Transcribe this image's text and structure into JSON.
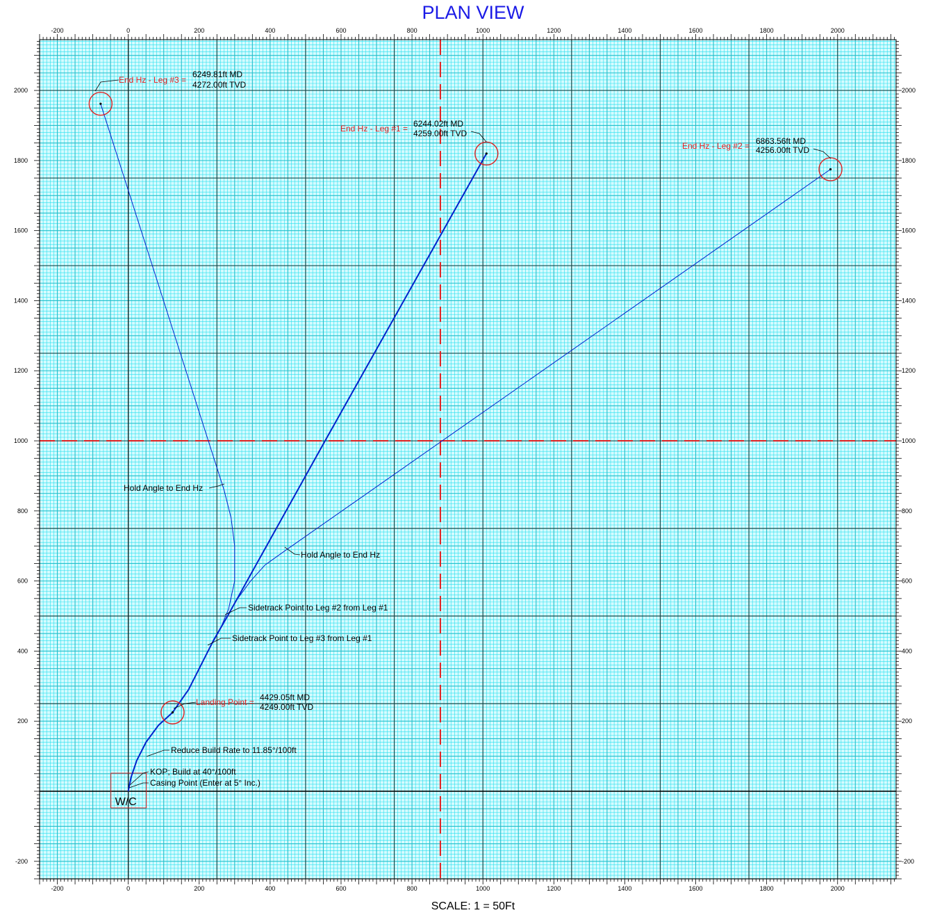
{
  "chart_data": {
    "type": "line",
    "title": "PLAN VIEW",
    "subtitle": "",
    "footer": "SCALE: 1 = 50Ft",
    "xlabel": "",
    "ylabel": "",
    "xlim": [
      -250,
      2165
    ],
    "ylim": [
      -250,
      2145
    ],
    "x_ticks": [
      -200,
      0,
      200,
      400,
      600,
      800,
      1000,
      1200,
      1400,
      1600,
      1800,
      2000
    ],
    "y_ticks": [
      -200,
      200,
      400,
      600,
      800,
      1000,
      1200,
      1400,
      1600,
      1800,
      2000
    ],
    "grid": true,
    "colors": {
      "grid_fine": "#27e0ee",
      "grid_mid": "#22c0cc",
      "grid_major": "#124848",
      "plot_bg": "#d6fbff",
      "well_path": "#0022cc",
      "target": "#e02020",
      "title": "#1a1ae6"
    },
    "reference_lines": [
      {
        "orientation": "vertical",
        "value": 880,
        "style": "dashed",
        "color": "#e02020"
      },
      {
        "orientation": "horizontal",
        "value": 1000,
        "style": "dashed",
        "color": "#e02020"
      }
    ],
    "wellhead": {
      "label": "W/C",
      "x": 0,
      "y": 0
    },
    "series": [
      {
        "name": "",
        "width": 2,
        "points": [
          [
            0,
            0
          ],
          [
            1,
            6
          ],
          [
            8,
            40
          ],
          [
            24,
            88
          ],
          [
            50,
            140
          ],
          [
            85,
            188
          ],
          [
            125,
            225
          ],
          [
            170,
            290
          ],
          [
            225,
            400
          ],
          [
            240,
            430
          ],
          [
            280,
            500
          ],
          [
            555,
            1000
          ],
          [
            1010,
            1820
          ]
        ]
      },
      {
        "name": "",
        "width": 1,
        "points": [
          [
            280,
            500
          ],
          [
            305,
            545
          ],
          [
            345,
            600
          ],
          [
            385,
            645
          ],
          [
            440,
            685
          ],
          [
            1980,
            1775
          ]
        ]
      },
      {
        "name": "",
        "width": 1,
        "points": [
          [
            225,
            400
          ],
          [
            258,
            460
          ],
          [
            283,
            520
          ],
          [
            300,
            600
          ],
          [
            300,
            700
          ],
          [
            290,
            780
          ],
          [
            270,
            860
          ],
          [
            -78,
            1962
          ]
        ]
      }
    ],
    "targets": [
      {
        "name": "End Hz - Leg #3",
        "x": -78,
        "y": 1962,
        "md": "6249.81ft MD",
        "tvd": "4272.00ft TVD"
      },
      {
        "name": "End Hz - Leg #1",
        "x": 1010,
        "y": 1820,
        "md": "6244.02ft MD",
        "tvd": "4259.00ft TVD"
      },
      {
        "name": "End Hz - Leg #2",
        "x": 1980,
        "y": 1775,
        "md": "6863.56ft MD",
        "tvd": "4256.00ft TVD"
      },
      {
        "name": "Landing Point",
        "x": 125,
        "y": 225,
        "md": "4429.05ft MD",
        "tvd": "4249.00ft TVD"
      }
    ],
    "annotations": [
      {
        "text": "Hold Angle to End Hz",
        "x": 270,
        "y": 860
      },
      {
        "text": "Hold Angle to End Hz",
        "x": 440,
        "y": 685
      },
      {
        "text": "Sidetrack Point to Leg #2 from Leg #1",
        "x": 275,
        "y": 490
      },
      {
        "text": "Sidetrack Point to Leg #3 from Leg #1",
        "x": 225,
        "y": 400
      },
      {
        "text": "Reduce Build Rate to 11.85°/100ft",
        "x": 50,
        "y": 88
      },
      {
        "text": "KOP; Build at 40°/100ft",
        "x": 2,
        "y": 8
      },
      {
        "text": "Casing Point (Enter at 5° Inc.)",
        "x": 0,
        "y": 3
      }
    ]
  }
}
